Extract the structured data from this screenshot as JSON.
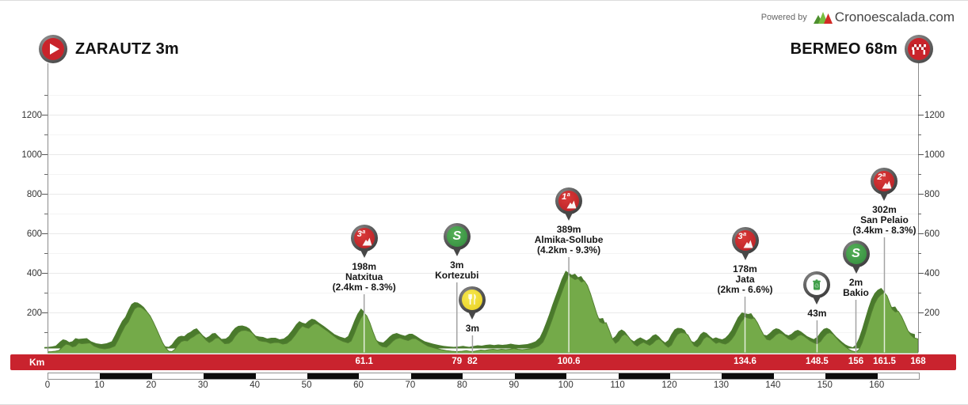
{
  "header": {
    "powered_by": "Powered by",
    "brand": "Cronoescalada.com",
    "start_label": "ZARAUTZ 3m",
    "finish_label": "BERMEO 68m"
  },
  "colors": {
    "accent_red": "#c9232e",
    "profile_green": "#74aa49",
    "profile_dark_green": "#4a7a2c",
    "pin_red": "#c0222a",
    "pin_green": "#3f9e49",
    "pin_yellow": "#f0dc3c",
    "axis_text": "#333333",
    "grid": "#ededed"
  },
  "chart_data": {
    "type": "area",
    "title": "Stage elevation profile Zarautz - Bermeo",
    "x_unit": "km",
    "y_unit": "m",
    "x_range": [
      0,
      168
    ],
    "y_range": [
      0,
      1400
    ],
    "x_tick_step": 10,
    "x_tick_labels": [
      "0",
      "10",
      "20",
      "30",
      "40",
      "50",
      "60",
      "70",
      "80",
      "90",
      "100",
      "110",
      "120",
      "130",
      "140",
      "150",
      "160"
    ],
    "y_tick_labels": [
      "200",
      "400",
      "600",
      "800",
      "1000",
      "1200"
    ],
    "y_major_ticks": [
      200,
      400,
      600,
      800,
      1000,
      1200
    ],
    "y_minor_ticks": [
      100,
      300,
      500,
      700,
      900,
      1100,
      1300
    ],
    "grid": true,
    "legend": false,
    "start": {
      "name": "ZARAUTZ",
      "elevation_m": 3,
      "km": 0
    },
    "finish": {
      "name": "BERMEO",
      "elevation_m": 68,
      "km": 168
    },
    "km_bar": {
      "label": "Km",
      "values": [
        "61.1",
        "79",
        "82",
        "100.6",
        "134.6",
        "148.5",
        "156",
        "161.5",
        "168"
      ],
      "kms": [
        61.1,
        79,
        82,
        100.6,
        134.6,
        148.5,
        156,
        161.5,
        168
      ]
    },
    "markers": [
      {
        "type": "climb",
        "category": "3ª",
        "km": 61.1,
        "elevation_m": 198,
        "name": "Natxitua",
        "label_lines": [
          "198m",
          "Natxitua",
          "(2.4km - 8.3%)"
        ],
        "pin_y": 300
      },
      {
        "type": "sprint",
        "icon": "S",
        "km": 79,
        "elevation_m": 3,
        "name": "Kortezubi",
        "label_lines": [
          "3m",
          "Kortezubi"
        ],
        "pin_y": 298
      },
      {
        "type": "feed",
        "km": 82,
        "elevation_m": 3,
        "label_lines": [
          "3m"
        ],
        "pin_y": 378
      },
      {
        "type": "climb",
        "category": "1ª",
        "km": 100.6,
        "elevation_m": 389,
        "name": "Almika-Sollube",
        "label_lines": [
          "389m",
          "Almika-Sollube",
          "(4.2km - 9.3%)"
        ],
        "pin_y": 253
      },
      {
        "type": "climb",
        "category": "3ª",
        "km": 134.6,
        "elevation_m": 178,
        "name": "Jata",
        "label_lines": [
          "178m",
          "Jata",
          "(2km - 6.6%)"
        ],
        "pin_y": 303
      },
      {
        "type": "waste",
        "km": 148.5,
        "elevation_m": 43,
        "label_lines": [
          "43m"
        ],
        "pin_y": 359
      },
      {
        "type": "sprint",
        "icon": "S",
        "km": 156,
        "elevation_m": 2,
        "name": "Bakio",
        "label_lines": [
          "2m",
          "Bakio"
        ],
        "pin_y": 320
      },
      {
        "type": "climb",
        "category": "2ª",
        "km": 161.5,
        "elevation_m": 302,
        "name": "San Pelaio",
        "label_lines": [
          "302m",
          "San Pelaio",
          "(3.4km - 8.3%)"
        ],
        "pin_y": 228
      }
    ],
    "profile": [
      [
        0,
        3
      ],
      [
        0.8,
        4
      ],
      [
        1.5,
        6
      ],
      [
        2.2,
        10
      ],
      [
        3,
        30
      ],
      [
        3.6,
        42
      ],
      [
        4.2,
        38
      ],
      [
        4.8,
        28
      ],
      [
        5.4,
        32
      ],
      [
        6,
        48
      ],
      [
        6.6,
        44
      ],
      [
        7.4,
        46
      ],
      [
        8.2,
        48
      ],
      [
        9,
        32
      ],
      [
        10,
        22
      ],
      [
        11,
        18
      ],
      [
        12,
        22
      ],
      [
        13,
        32
      ],
      [
        13.6,
        62
      ],
      [
        14.2,
        95
      ],
      [
        15,
        135
      ],
      [
        15.6,
        155
      ],
      [
        16.2,
        190
      ],
      [
        16.8,
        220
      ],
      [
        17.4,
        230
      ],
      [
        18,
        228
      ],
      [
        18.6,
        218
      ],
      [
        19.2,
        205
      ],
      [
        19.8,
        185
      ],
      [
        20.4,
        155
      ],
      [
        21,
        120
      ],
      [
        21.6,
        85
      ],
      [
        22.2,
        50
      ],
      [
        22.8,
        22
      ],
      [
        23.4,
        6
      ],
      [
        24,
        4
      ],
      [
        24.6,
        16
      ],
      [
        25.2,
        38
      ],
      [
        25.8,
        55
      ],
      [
        26.4,
        60
      ],
      [
        27,
        58
      ],
      [
        27.6,
        72
      ],
      [
        28.2,
        80
      ],
      [
        28.8,
        92
      ],
      [
        29.4,
        98
      ],
      [
        30,
        80
      ],
      [
        30.6,
        62
      ],
      [
        31.2,
        50
      ],
      [
        31.8,
        58
      ],
      [
        32.4,
        72
      ],
      [
        33,
        74
      ],
      [
        33.6,
        58
      ],
      [
        34.2,
        44
      ],
      [
        35,
        46
      ],
      [
        35.6,
        58
      ],
      [
        36.2,
        82
      ],
      [
        36.8,
        100
      ],
      [
        37.4,
        110
      ],
      [
        38.2,
        112
      ],
      [
        39,
        106
      ],
      [
        39.6,
        96
      ],
      [
        40.2,
        76
      ],
      [
        40.8,
        60
      ],
      [
        41.5,
        56
      ],
      [
        42.2,
        54
      ],
      [
        43,
        46
      ],
      [
        43.8,
        50
      ],
      [
        44.6,
        50
      ],
      [
        45.4,
        42
      ],
      [
        46.2,
        46
      ],
      [
        47,
        62
      ],
      [
        47.8,
        88
      ],
      [
        48.6,
        118
      ],
      [
        49.2,
        134
      ],
      [
        49.8,
        126
      ],
      [
        50.4,
        122
      ],
      [
        51,
        136
      ],
      [
        51.6,
        146
      ],
      [
        52.2,
        142
      ],
      [
        53,
        126
      ],
      [
        54,
        108
      ],
      [
        55,
        88
      ],
      [
        56,
        68
      ],
      [
        57,
        56
      ],
      [
        58,
        48
      ],
      [
        58.6,
        58
      ],
      [
        59.2,
        95
      ],
      [
        59.8,
        135
      ],
      [
        60.4,
        170
      ],
      [
        61.1,
        198
      ],
      [
        61.6,
        185
      ],
      [
        62.2,
        150
      ],
      [
        62.8,
        105
      ],
      [
        63.4,
        65
      ],
      [
        64,
        40
      ],
      [
        64.6,
        30
      ],
      [
        65.4,
        26
      ],
      [
        66,
        40
      ],
      [
        66.6,
        56
      ],
      [
        67.2,
        68
      ],
      [
        68,
        74
      ],
      [
        68.8,
        66
      ],
      [
        69.6,
        60
      ],
      [
        70.4,
        70
      ],
      [
        71,
        70
      ],
      [
        71.8,
        58
      ],
      [
        72.6,
        44
      ],
      [
        73.4,
        32
      ],
      [
        74.2,
        26
      ],
      [
        75,
        20
      ],
      [
        76,
        14
      ],
      [
        77,
        9
      ],
      [
        78,
        6
      ],
      [
        79,
        4
      ],
      [
        80,
        6
      ],
      [
        80.8,
        9
      ],
      [
        81.4,
        6
      ],
      [
        82,
        4
      ],
      [
        82.8,
        8
      ],
      [
        83.6,
        12
      ],
      [
        84.4,
        10
      ],
      [
        85.2,
        14
      ],
      [
        86,
        16
      ],
      [
        86.8,
        13
      ],
      [
        87.6,
        16
      ],
      [
        88.4,
        14
      ],
      [
        89.2,
        16
      ],
      [
        90,
        20
      ],
      [
        90.8,
        16
      ],
      [
        91.6,
        14
      ],
      [
        92.4,
        16
      ],
      [
        93.2,
        18
      ],
      [
        94,
        24
      ],
      [
        94.8,
        32
      ],
      [
        95.6,
        52
      ],
      [
        96.2,
        85
      ],
      [
        96.8,
        125
      ],
      [
        97.4,
        168
      ],
      [
        98,
        215
      ],
      [
        98.6,
        258
      ],
      [
        99.2,
        300
      ],
      [
        99.8,
        345
      ],
      [
        100.6,
        389
      ],
      [
        101.2,
        378
      ],
      [
        101.8,
        368
      ],
      [
        102.4,
        374
      ],
      [
        103,
        356
      ],
      [
        103.6,
        362
      ],
      [
        104.2,
        338
      ],
      [
        104.8,
        295
      ],
      [
        105.4,
        245
      ],
      [
        106,
        195
      ],
      [
        106.6,
        155
      ],
      [
        107.2,
        147
      ],
      [
        107.8,
        150
      ],
      [
        108.4,
        112
      ],
      [
        109,
        70
      ],
      [
        109.6,
        46
      ],
      [
        110.2,
        58
      ],
      [
        110.8,
        82
      ],
      [
        111.4,
        92
      ],
      [
        112,
        82
      ],
      [
        112.6,
        62
      ],
      [
        113.2,
        42
      ],
      [
        113.8,
        32
      ],
      [
        114.4,
        44
      ],
      [
        115,
        52
      ],
      [
        115.6,
        44
      ],
      [
        116.2,
        36
      ],
      [
        116.8,
        46
      ],
      [
        117.4,
        62
      ],
      [
        118,
        68
      ],
      [
        118.6,
        56
      ],
      [
        119.2,
        38
      ],
      [
        119.8,
        26
      ],
      [
        120.4,
        38
      ],
      [
        121,
        68
      ],
      [
        121.6,
        92
      ],
      [
        122.2,
        100
      ],
      [
        123,
        98
      ],
      [
        123.6,
        88
      ],
      [
        124.2,
        58
      ],
      [
        124.8,
        34
      ],
      [
        125.4,
        28
      ],
      [
        126,
        42
      ],
      [
        126.6,
        68
      ],
      [
        127.2,
        80
      ],
      [
        127.8,
        74
      ],
      [
        128.4,
        58
      ],
      [
        129,
        46
      ],
      [
        129.6,
        52
      ],
      [
        130.2,
        46
      ],
      [
        130.8,
        42
      ],
      [
        131.4,
        50
      ],
      [
        132,
        66
      ],
      [
        132.6,
        88
      ],
      [
        133.2,
        120
      ],
      [
        133.8,
        152
      ],
      [
        134.6,
        178
      ],
      [
        135.2,
        174
      ],
      [
        135.8,
        170
      ],
      [
        136.4,
        174
      ],
      [
        137,
        150
      ],
      [
        137.6,
        118
      ],
      [
        138.2,
        88
      ],
      [
        138.8,
        66
      ],
      [
        139.4,
        62
      ],
      [
        140,
        74
      ],
      [
        140.6,
        90
      ],
      [
        141.2,
        98
      ],
      [
        141.8,
        94
      ],
      [
        142.4,
        82
      ],
      [
        143,
        68
      ],
      [
        143.6,
        62
      ],
      [
        144.2,
        70
      ],
      [
        144.8,
        84
      ],
      [
        145.4,
        90
      ],
      [
        146,
        82
      ],
      [
        146.6,
        70
      ],
      [
        147.2,
        58
      ],
      [
        148,
        48
      ],
      [
        148.5,
        43
      ],
      [
        149.2,
        56
      ],
      [
        149.8,
        78
      ],
      [
        150.4,
        95
      ],
      [
        151,
        100
      ],
      [
        151.6,
        92
      ],
      [
        152.2,
        74
      ],
      [
        152.8,
        56
      ],
      [
        153.4,
        42
      ],
      [
        154,
        28
      ],
      [
        154.6,
        16
      ],
      [
        155.2,
        8
      ],
      [
        156,
        2
      ],
      [
        156.6,
        14
      ],
      [
        157.2,
        48
      ],
      [
        157.8,
        95
      ],
      [
        158.4,
        148
      ],
      [
        159,
        200
      ],
      [
        159.6,
        245
      ],
      [
        160.2,
        275
      ],
      [
        160.8,
        292
      ],
      [
        161.5,
        302
      ],
      [
        162,
        286
      ],
      [
        162.5,
        252
      ],
      [
        163,
        218
      ],
      [
        163.6,
        205
      ],
      [
        164.2,
        208
      ],
      [
        164.8,
        182
      ],
      [
        165.4,
        148
      ],
      [
        166,
        112
      ],
      [
        166.6,
        88
      ],
      [
        167.2,
        74
      ],
      [
        168,
        68
      ]
    ]
  }
}
